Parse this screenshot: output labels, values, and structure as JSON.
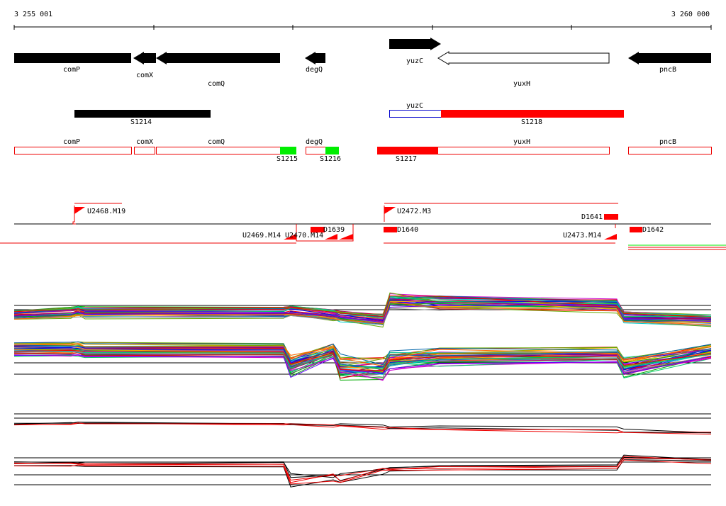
{
  "ruler": {
    "start": "3 255 001",
    "end": "3 260 000"
  },
  "genes": [
    "comP",
    "comX",
    "comQ",
    "degQ",
    "yuzC",
    "yuxH",
    "pncB"
  ],
  "segments": [
    "S1214",
    "yuzC",
    "S1218"
  ],
  "annotations": [
    "comP",
    "comX",
    "comQ",
    "S1215",
    "degQ",
    "S1216",
    "S1217",
    "yuxH",
    "pncB"
  ],
  "transcripts": [
    "U2468.M19",
    "U2472.M3",
    "D1641",
    "U2469.M14",
    "U2470.M14",
    "D1639",
    "D1640",
    "U2473.M14",
    "D1642"
  ]
}
